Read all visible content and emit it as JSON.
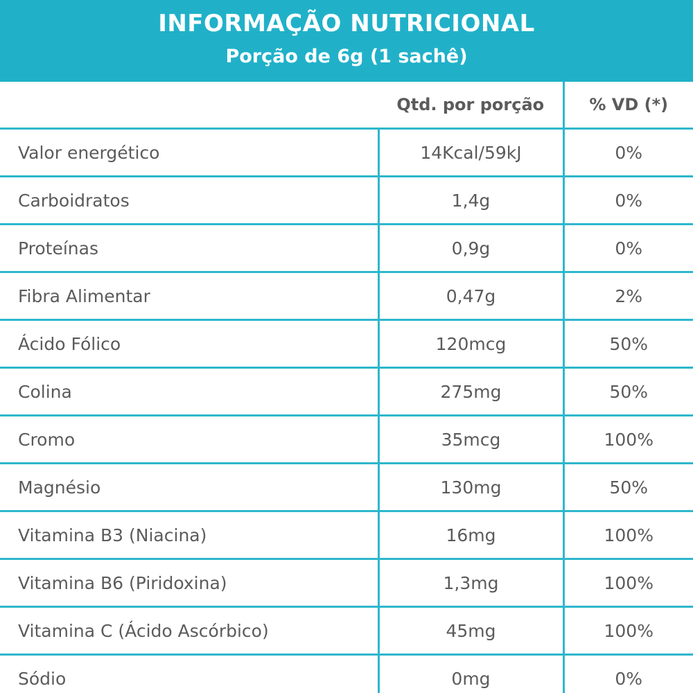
{
  "header": {
    "title": "INFORMAÇÃO NUTRICIONAL",
    "subtitle": "Porção de 6g (1 sachê)"
  },
  "colors": {
    "banner": "#20b1c9",
    "rule": "#2eb7cc",
    "text": "#5b5b5b"
  },
  "table": {
    "columns": [
      "",
      "Qtd. por porção",
      "% VD (*)"
    ],
    "rows": [
      {
        "name": "Valor energético",
        "qty": "14Kcal/59kJ",
        "vd": "0%"
      },
      {
        "name": "Carboidratos",
        "qty": "1,4g",
        "vd": "0%"
      },
      {
        "name": "Proteínas",
        "qty": "0,9g",
        "vd": "0%"
      },
      {
        "name": "Fibra Alimentar",
        "qty": "0,47g",
        "vd": "2%"
      },
      {
        "name": "Ácido Fólico",
        "qty": "120mcg",
        "vd": "50%"
      },
      {
        "name": "Colina",
        "qty": "275mg",
        "vd": "50%"
      },
      {
        "name": "Cromo",
        "qty": "35mcg",
        "vd": "100%"
      },
      {
        "name": "Magnésio",
        "qty": "130mg",
        "vd": "50%"
      },
      {
        "name": "Vitamina B3 (Niacina)",
        "qty": "16mg",
        "vd": "100%"
      },
      {
        "name": "Vitamina B6 (Piridoxina)",
        "qty": "1,3mg",
        "vd": "100%"
      },
      {
        "name": "Vitamina C (Ácido Ascórbico)",
        "qty": "45mg",
        "vd": "100%"
      },
      {
        "name": "Sódio",
        "qty": "0mg",
        "vd": "0%"
      }
    ]
  }
}
